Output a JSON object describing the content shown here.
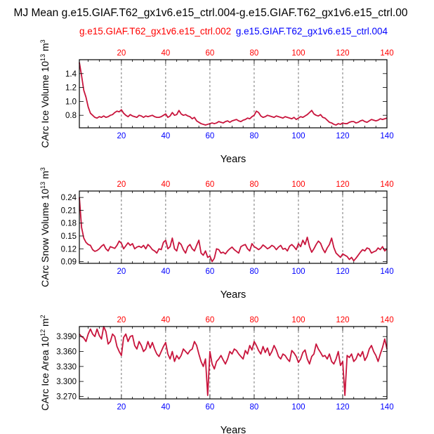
{
  "title": "MJ Mean g.e15.GIAF.T62_gx1v6.e15_ctrl.004-g.e15.GIAF.T62_gx1v6.e15_ctrl.00",
  "legend": {
    "red_label": "g.e15.GIAF.T62_gx1v6.e15_ctrl.002",
    "blue_label": "g.e15.GIAF.T62_gx1v6.e15_ctrl.004"
  },
  "colors": {
    "series": "#c8143c",
    "top_axis": "#ff0000",
    "bottom_axis": "#0000ff",
    "frame": "#000000"
  },
  "chart_data": [
    {
      "type": "line",
      "title": "",
      "xlabel": "Years",
      "ylabel": "CArc Ice Volume 10^13 m^3",
      "ylabel_main": "CArc Ice Volume 10",
      "ylabel_exp": "13",
      "ylabel_unit": "m",
      "ylabel_unit_exp": "3",
      "xlim": [
        1,
        140
      ],
      "ylim": [
        0.62,
        1.6
      ],
      "xticks": [
        20,
        40,
        60,
        80,
        100,
        120,
        140
      ],
      "xtick_labels": [
        "20",
        "40",
        "60",
        "80",
        "100",
        "120",
        "140"
      ],
      "yticks": [
        0.8,
        1.0,
        1.2,
        1.4
      ],
      "ytick_labels": [
        "0.8",
        "1.0",
        "1.2",
        "1.4"
      ],
      "gridlines_x": [
        20,
        40,
        60,
        80,
        100,
        120
      ],
      "series": [
        {
          "name": "g.e15.GIAF.T62_gx1v6.e15_ctrl.002",
          "x_start": 1,
          "values": [
            1.56,
            1.37,
            1.16,
            1.06,
            0.92,
            0.83,
            0.8,
            0.77,
            0.76,
            0.78,
            0.77,
            0.79,
            0.77,
            0.78,
            0.8,
            0.81,
            0.84,
            0.86,
            0.85,
            0.88,
            0.83,
            0.8,
            0.78,
            0.81,
            0.79,
            0.78,
            0.77,
            0.8,
            0.79,
            0.77,
            0.79,
            0.78,
            0.79,
            0.8,
            0.78,
            0.77,
            0.77,
            0.78,
            0.8,
            0.82,
            0.77,
            0.79,
            0.84,
            0.8,
            0.81,
            0.87,
            0.82,
            0.8,
            0.81,
            0.79,
            0.78,
            0.75,
            0.77,
            0.72,
            0.7,
            0.68,
            0.67,
            0.66,
            0.67,
            0.68,
            0.69,
            0.68,
            0.69,
            0.71,
            0.7,
            0.69,
            0.71,
            0.72,
            0.7,
            0.72,
            0.73,
            0.74,
            0.72,
            0.71,
            0.73,
            0.74,
            0.76,
            0.75,
            0.78,
            0.8,
            0.86,
            0.84,
            0.79,
            0.77,
            0.78,
            0.8,
            0.79,
            0.78,
            0.77,
            0.79,
            0.78,
            0.77,
            0.76,
            0.78,
            0.77,
            0.76,
            0.75,
            0.77,
            0.74,
            0.76,
            0.78,
            0.77,
            0.79,
            0.81,
            0.84,
            0.87,
            0.82,
            0.8,
            0.79,
            0.81,
            0.77,
            0.76,
            0.73,
            0.7,
            0.69,
            0.67,
            0.66,
            0.68,
            0.67,
            0.69,
            0.68,
            0.68,
            0.7,
            0.71,
            0.71,
            0.69,
            0.7,
            0.72,
            0.73,
            0.71,
            0.7,
            0.72,
            0.74,
            0.73,
            0.72,
            0.73,
            0.75,
            0.74,
            0.75,
            0.76
          ]
        }
      ]
    },
    {
      "type": "line",
      "title": "",
      "xlabel": "Years",
      "ylabel": "CArc Snow Volume 10^13 m^3",
      "ylabel_main": "CArc Snow Volume 10",
      "ylabel_exp": "13",
      "ylabel_unit": "m",
      "ylabel_unit_exp": "3",
      "xlim": [
        1,
        140
      ],
      "ylim": [
        0.086,
        0.255
      ],
      "xticks": [
        20,
        40,
        60,
        80,
        100,
        120,
        140
      ],
      "xtick_labels": [
        "20",
        "40",
        "60",
        "80",
        "100",
        "120",
        "140"
      ],
      "yticks": [
        0.09,
        0.12,
        0.15,
        0.18,
        0.21,
        0.24
      ],
      "ytick_labels": [
        "0.09",
        "0.12",
        "0.15",
        "0.18",
        "0.21",
        "0.24"
      ],
      "gridlines_x": [
        20,
        40,
        60,
        80,
        100,
        120
      ],
      "series": [
        {
          "name": "g.e15.GIAF.T62_gx1v6.e15_ctrl.002",
          "x_start": 1,
          "values": [
            0.24,
            0.17,
            0.145,
            0.135,
            0.13,
            0.128,
            0.118,
            0.114,
            0.116,
            0.12,
            0.126,
            0.13,
            0.12,
            0.115,
            0.125,
            0.123,
            0.121,
            0.128,
            0.138,
            0.133,
            0.12,
            0.127,
            0.134,
            0.128,
            0.132,
            0.12,
            0.124,
            0.126,
            0.123,
            0.128,
            0.12,
            0.13,
            0.125,
            0.118,
            0.115,
            0.11,
            0.12,
            0.118,
            0.135,
            0.14,
            0.12,
            0.125,
            0.145,
            0.12,
            0.115,
            0.135,
            0.13,
            0.118,
            0.11,
            0.125,
            0.13,
            0.12,
            0.115,
            0.128,
            0.14,
            0.11,
            0.105,
            0.115,
            0.1,
            0.103,
            0.09,
            0.098,
            0.12,
            0.118,
            0.11,
            0.112,
            0.108,
            0.115,
            0.12,
            0.124,
            0.118,
            0.114,
            0.11,
            0.125,
            0.128,
            0.13,
            0.12,
            0.115,
            0.132,
            0.125,
            0.122,
            0.118,
            0.122,
            0.129,
            0.125,
            0.12,
            0.123,
            0.128,
            0.125,
            0.118,
            0.124,
            0.128,
            0.119,
            0.121,
            0.115,
            0.126,
            0.13,
            0.125,
            0.118,
            0.132,
            0.125,
            0.14,
            0.13,
            0.147,
            0.125,
            0.112,
            0.12,
            0.13,
            0.138,
            0.133,
            0.12,
            0.111,
            0.122,
            0.13,
            0.145,
            0.123,
            0.11,
            0.105,
            0.1,
            0.108,
            0.105,
            0.102,
            0.095,
            0.1,
            0.092,
            0.098,
            0.105,
            0.112,
            0.118,
            0.115,
            0.122,
            0.12,
            0.11,
            0.113,
            0.115,
            0.122,
            0.118,
            0.125,
            0.115,
            0.12
          ]
        }
      ]
    },
    {
      "type": "line",
      "title": "",
      "xlabel": "Years",
      "ylabel": "CArc Ice Area 10^12 m^2",
      "ylabel_main": "CArc Ice Area 10",
      "ylabel_exp": "12",
      "ylabel_unit": "m",
      "ylabel_unit_exp": "2",
      "xlim": [
        1,
        140
      ],
      "ylim": [
        3.265,
        3.41
      ],
      "xticks": [
        20,
        40,
        60,
        80,
        100,
        120,
        140
      ],
      "xtick_labels": [
        "20",
        "40",
        "60",
        "80",
        "100",
        "120",
        "140"
      ],
      "yticks": [
        3.27,
        3.3,
        3.33,
        3.36,
        3.39
      ],
      "ytick_labels": [
        "3.270",
        "3.300",
        "3.330",
        "3.360",
        "3.390"
      ],
      "gridlines_x": [
        20,
        40,
        60,
        80,
        100,
        120
      ],
      "series": [
        {
          "name": "g.e15.GIAF.T62_gx1v6.e15_ctrl.002",
          "x_start": 1,
          "values": [
            3.395,
            3.39,
            3.387,
            3.38,
            3.395,
            3.405,
            3.395,
            3.39,
            3.405,
            3.392,
            3.385,
            3.41,
            3.4,
            3.375,
            3.38,
            3.395,
            3.39,
            3.37,
            3.36,
            3.352,
            3.388,
            3.395,
            3.38,
            3.39,
            3.392,
            3.372,
            3.365,
            3.38,
            3.372,
            3.36,
            3.365,
            3.38,
            3.367,
            3.378,
            3.365,
            3.355,
            3.35,
            3.36,
            3.37,
            3.378,
            3.355,
            3.345,
            3.36,
            3.34,
            3.352,
            3.345,
            3.352,
            3.365,
            3.36,
            3.355,
            3.362,
            3.365,
            3.38,
            3.372,
            3.355,
            3.34,
            3.33,
            3.345,
            3.272,
            3.36,
            3.335,
            3.325,
            3.34,
            3.345,
            3.352,
            3.343,
            3.335,
            3.345,
            3.36,
            3.355,
            3.365,
            3.362,
            3.355,
            3.35,
            3.345,
            3.362,
            3.355,
            3.372,
            3.363,
            3.38,
            3.372,
            3.362,
            3.355,
            3.37,
            3.358,
            3.367,
            3.352,
            3.36,
            3.372,
            3.363,
            3.35,
            3.345,
            3.355,
            3.352,
            3.345,
            3.34,
            3.362,
            3.357,
            3.35,
            3.338,
            3.345,
            3.358,
            3.363,
            3.345,
            3.335,
            3.35,
            3.355,
            3.375,
            3.365,
            3.358,
            3.35,
            3.352,
            3.345,
            3.355,
            3.34,
            3.335,
            3.345,
            3.36,
            3.332,
            3.34,
            3.272,
            3.352,
            3.348,
            3.355,
            3.34,
            3.345,
            3.356,
            3.35,
            3.36,
            3.342,
            3.35,
            3.365,
            3.372,
            3.36,
            3.352,
            3.34,
            3.355,
            3.368,
            3.385,
            3.365
          ]
        }
      ]
    }
  ]
}
